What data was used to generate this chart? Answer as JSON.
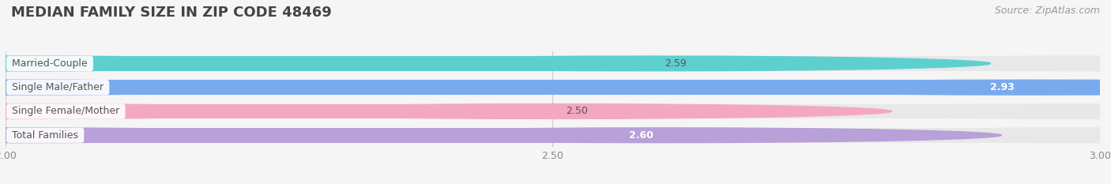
{
  "title": "MEDIAN FAMILY SIZE IN ZIP CODE 48469",
  "source": "Source: ZipAtlas.com",
  "categories": [
    "Married-Couple",
    "Single Male/Father",
    "Single Female/Mother",
    "Total Families"
  ],
  "values": [
    2.59,
    2.93,
    2.5,
    2.6
  ],
  "bar_colors": [
    "#5ecfcf",
    "#7aaaee",
    "#f4a8c0",
    "#b8a0d8"
  ],
  "bar_bg_colors": [
    "#eeeeee",
    "#eeeeee",
    "#eeeeee",
    "#eeeeee"
  ],
  "value_inside": [
    false,
    true,
    false,
    true
  ],
  "xlim": [
    2.0,
    3.0
  ],
  "xticks": [
    2.0,
    2.5,
    3.0
  ],
  "title_fontsize": 13,
  "source_fontsize": 9,
  "label_fontsize": 9,
  "value_fontsize": 9,
  "background_color": "#f5f5f5"
}
